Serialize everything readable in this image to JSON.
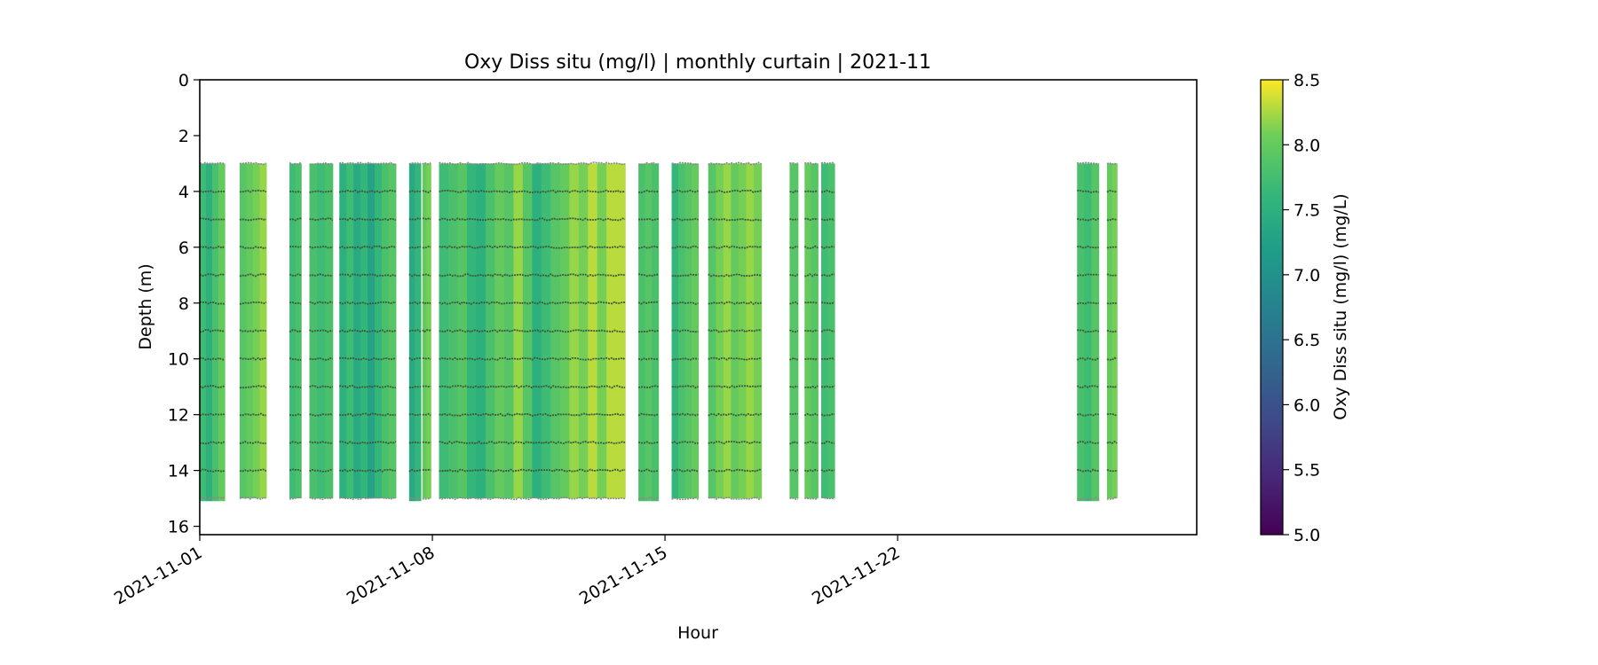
{
  "chart_data": {
    "type": "heatmap",
    "title": "Oxy Diss situ (mg/l) | monthly curtain | 2021-11",
    "xlabel": "Hour",
    "ylabel": "Depth (m)",
    "x_axis": {
      "type": "date",
      "range_days": [
        0,
        30
      ],
      "ticks": [
        {
          "day": 0,
          "label": "2021-11-01"
        },
        {
          "day": 7,
          "label": "2021-11-08"
        },
        {
          "day": 14,
          "label": "2021-11-15"
        },
        {
          "day": 21,
          "label": "2021-11-22"
        }
      ]
    },
    "y_axis": {
      "inverted": true,
      "range": [
        0,
        16.3
      ],
      "ticks": [
        0,
        2,
        4,
        6,
        8,
        10,
        12,
        14,
        16
      ]
    },
    "colorbar": {
      "label": "Oxy Diss situ (mg/l) (mg/L)",
      "range": [
        5.0,
        8.5
      ],
      "ticks": [
        "5.0",
        "5.5",
        "6.0",
        "6.5",
        "7.0",
        "7.5",
        "8.0",
        "8.5"
      ],
      "colormap": "viridis"
    },
    "sensor_depths_m": [
      3,
      4,
      5,
      6,
      7,
      8,
      9,
      10,
      11,
      12,
      13,
      14,
      15
    ],
    "segments": [
      {
        "start_day": 0.0,
        "end_day": 0.75,
        "top_m": 3.0,
        "bottom_m": 15.1,
        "values": [
          7.7,
          7.5,
          7.8,
          8.0
        ]
      },
      {
        "start_day": 1.2,
        "end_day": 2.0,
        "top_m": 3.0,
        "bottom_m": 15.0,
        "values": [
          7.9,
          8.0,
          8.1,
          8.2
        ]
      },
      {
        "start_day": 2.7,
        "end_day": 3.05,
        "top_m": 3.0,
        "bottom_m": 15.0,
        "values": [
          7.7,
          7.8
        ]
      },
      {
        "start_day": 3.3,
        "end_day": 4.0,
        "top_m": 3.0,
        "bottom_m": 15.0,
        "values": [
          7.8,
          7.7,
          7.8
        ]
      },
      {
        "start_day": 4.2,
        "end_day": 5.9,
        "top_m": 3.0,
        "bottom_m": 15.0,
        "values": [
          7.5,
          7.7,
          7.4,
          7.6,
          7.3,
          7.6,
          7.8,
          7.9
        ]
      },
      {
        "start_day": 6.3,
        "end_day": 6.65,
        "top_m": 3.0,
        "bottom_m": 15.1,
        "values": [
          7.4,
          7.6
        ]
      },
      {
        "start_day": 6.7,
        "end_day": 6.95,
        "top_m": 3.0,
        "bottom_m": 15.0,
        "values": [
          8.0,
          8.1
        ]
      },
      {
        "start_day": 7.2,
        "end_day": 12.8,
        "top_m": 3.0,
        "bottom_m": 15.0,
        "values": [
          7.7,
          7.8,
          7.9,
          7.6,
          7.5,
          7.8,
          8.0,
          7.9,
          8.2,
          7.9,
          7.5,
          7.7,
          7.9,
          8.0,
          8.2,
          8.1,
          8.3,
          8.1,
          8.3,
          8.3
        ]
      },
      {
        "start_day": 13.2,
        "end_day": 13.8,
        "top_m": 3.0,
        "bottom_m": 15.1,
        "values": [
          7.8,
          7.9,
          7.8
        ]
      },
      {
        "start_day": 14.2,
        "end_day": 15.0,
        "top_m": 3.0,
        "bottom_m": 15.0,
        "values": [
          7.6,
          7.8,
          7.9,
          8.0
        ]
      },
      {
        "start_day": 15.3,
        "end_day": 16.9,
        "top_m": 3.0,
        "bottom_m": 15.0,
        "values": [
          7.9,
          8.1,
          8.2,
          8.0,
          8.1,
          8.2,
          8.1
        ]
      },
      {
        "start_day": 17.75,
        "end_day": 18.0,
        "top_m": 3.0,
        "bottom_m": 15.0,
        "values": [
          7.9
        ]
      },
      {
        "start_day": 18.2,
        "end_day": 18.6,
        "top_m": 3.0,
        "bottom_m": 15.0,
        "values": [
          8.0,
          7.9
        ]
      },
      {
        "start_day": 18.7,
        "end_day": 19.1,
        "top_m": 3.0,
        "bottom_m": 15.0,
        "values": [
          7.7,
          7.8
        ]
      },
      {
        "start_day": 26.4,
        "end_day": 27.05,
        "top_m": 3.0,
        "bottom_m": 15.1,
        "values": [
          7.8,
          7.7,
          7.9
        ]
      },
      {
        "start_day": 27.3,
        "end_day": 27.6,
        "top_m": 3.0,
        "bottom_m": 15.0,
        "values": [
          8.0,
          8.1
        ]
      }
    ]
  }
}
